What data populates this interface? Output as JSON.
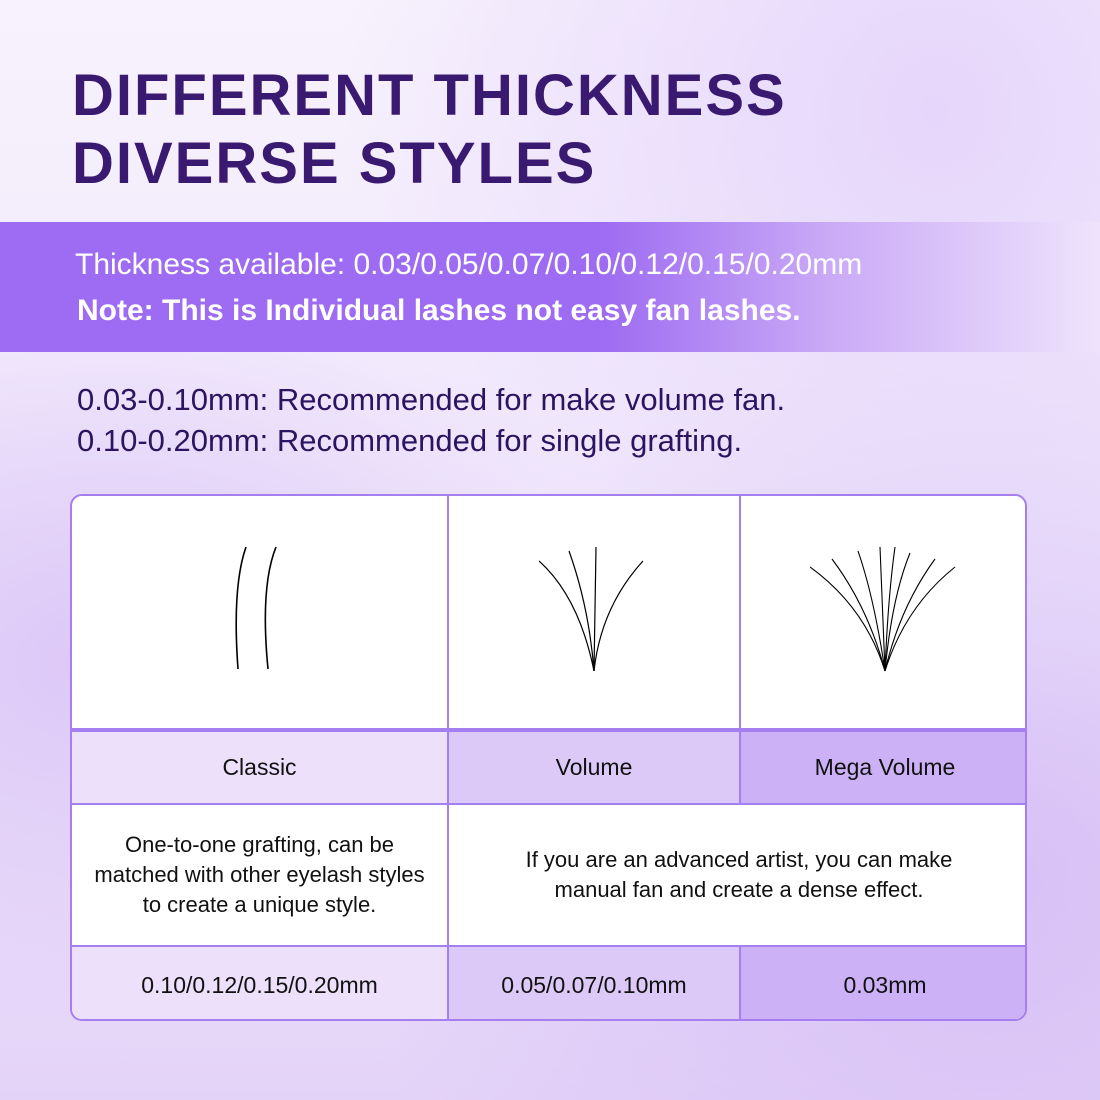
{
  "header": {
    "title_line1": "DIFFERENT THICKNESS",
    "title_line2": "DIVERSE STYLES"
  },
  "band": {
    "thickness": "Thickness available: 0.03/0.05/0.07/0.10/0.12/0.15/0.20mm",
    "note": "Note: This is Individual lashes not easy fan lashes."
  },
  "recommendations": [
    "0.03-0.10mm: Recommended for make volume fan.",
    "0.10-0.20mm: Recommended for single grafting."
  ],
  "table": {
    "styles": [
      "Classic",
      "Volume",
      "Mega Volume"
    ],
    "descriptions": [
      "One-to-one grafting, can be matched with other eyelash styles to create a unique style.",
      "If you are an advanced artist, you can make manual fan and create a dense effect."
    ],
    "thickness": [
      "0.10/0.12/0.15/0.20mm",
      "0.05/0.07/0.10mm",
      "0.03mm"
    ],
    "images": [
      "classic-lash-icon",
      "volume-fan-icon",
      "mega-volume-fan-icon"
    ]
  },
  "colors": {
    "title": "#3a1a70",
    "band": "#9e6cf2",
    "border": "#a57ef0"
  }
}
